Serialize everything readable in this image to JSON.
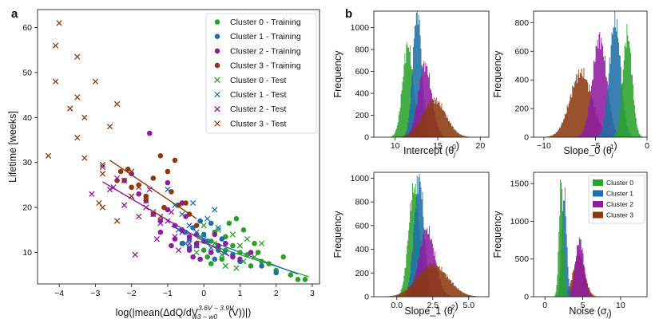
{
  "panel_labels": [
    "a",
    "b"
  ],
  "colors": {
    "Cluster 0": "#2ca02c",
    "Cluster 1": "#1f6fa6",
    "Cluster 2": "#8e1ba0",
    "Cluster 3": "#8b3a10"
  },
  "chart_data": [
    {
      "type": "scatter",
      "xlabel": "log(|mean(ΔdQ/dV",
      "xlabel_sup": "3.6V − 3.9V",
      "xlabel_sub": "w3 − w0",
      "xlabel_tail": "(V))|)",
      "ylabel": "Lifetime [weeks]",
      "xlim": [
        -4.6,
        3.2
      ],
      "ylim": [
        3,
        64
      ],
      "xticks": [
        -4,
        -3,
        -2,
        -1,
        0,
        1,
        2,
        3
      ],
      "yticks": [
        10,
        20,
        30,
        40,
        50,
        60
      ],
      "legend_position": "top-right",
      "legend": [
        "Cluster 0 - Training",
        "Cluster 1 - Training",
        "Cluster 2 - Training",
        "Cluster 3 - Training",
        "Cluster 0 - Test",
        "Cluster 1 - Test",
        "Cluster 2 - Test",
        "Cluster 3 - Test"
      ],
      "series": [
        {
          "name": "Cluster 0 - Training",
          "cluster": "Cluster 0",
          "marker": "circle",
          "points": [
            [
              0.2,
              12.5
            ],
            [
              0.4,
              11.0
            ],
            [
              0.6,
              13.5
            ],
            [
              0.8,
              11.5
            ],
            [
              1.0,
              10.0
            ],
            [
              1.2,
              9.5
            ],
            [
              1.4,
              12.0
            ],
            [
              1.6,
              8.0
            ],
            [
              1.8,
              7.5
            ],
            [
              2.0,
              6.0
            ],
            [
              2.2,
              9.0
            ],
            [
              2.4,
              5.0
            ],
            [
              2.6,
              4.0
            ],
            [
              2.8,
              4.0
            ],
            [
              0.1,
              9.0
            ],
            [
              0.3,
              14.5
            ],
            [
              0.7,
              16.5
            ],
            [
              0.9,
              17.5
            ],
            [
              1.1,
              15.0
            ],
            [
              0.5,
              8.5
            ],
            [
              0.0,
              10.5
            ],
            [
              1.3,
              7.0
            ],
            [
              0.6,
              10.5
            ],
            [
              1.5,
              10.0
            ],
            [
              0.2,
              7.5
            ]
          ]
        },
        {
          "name": "Cluster 1 - Training",
          "cluster": "Cluster 1",
          "marker": "circle",
          "points": [
            [
              -0.6,
              12.0
            ],
            [
              -0.4,
              13.0
            ],
            [
              -0.2,
              11.5
            ],
            [
              0.0,
              14.0
            ],
            [
              0.2,
              16.5
            ],
            [
              0.4,
              10.5
            ],
            [
              0.6,
              12.0
            ],
            [
              0.8,
              9.5
            ],
            [
              -0.3,
              15.5
            ],
            [
              0.1,
              12.5
            ],
            [
              -0.5,
              14.5
            ],
            [
              0.3,
              8.5
            ],
            [
              -0.1,
              17.0
            ],
            [
              0.5,
              13.0
            ],
            [
              1.0,
              8.0
            ],
            [
              1.6,
              7.0
            ],
            [
              2.0,
              5.5
            ],
            [
              -0.4,
              11.0
            ]
          ]
        },
        {
          "name": "Cluster 2 - Training",
          "cluster": "Cluster 2",
          "marker": "circle",
          "points": [
            [
              -2.2,
              26.0
            ],
            [
              -2.0,
              27.5
            ],
            [
              -1.8,
              23.0
            ],
            [
              -1.6,
              21.5
            ],
            [
              -1.4,
              18.5
            ],
            [
              -1.2,
              17.0
            ],
            [
              -1.0,
              19.5
            ],
            [
              -0.8,
              16.0
            ],
            [
              -0.6,
              15.0
            ],
            [
              -0.4,
              13.5
            ],
            [
              -0.2,
              14.0
            ],
            [
              0.0,
              12.5
            ],
            [
              -1.5,
              36.5
            ],
            [
              -1.0,
              25.5
            ],
            [
              -0.6,
              21.0
            ],
            [
              -0.8,
              13.0
            ],
            [
              -0.4,
              10.5
            ],
            [
              -0.3,
              9.0
            ],
            [
              -0.1,
              8.5
            ],
            [
              0.2,
              10.0
            ],
            [
              0.4,
              11.5
            ],
            [
              0.6,
              12.0
            ],
            [
              0.8,
              9.0
            ],
            [
              1.0,
              8.5
            ],
            [
              1.3,
              10.0
            ],
            [
              -1.2,
              14.5
            ],
            [
              -0.9,
              11.5
            ],
            [
              -0.5,
              18.0
            ],
            [
              -0.2,
              12.0
            ],
            [
              0.3,
              14.0
            ]
          ]
        },
        {
          "name": "Cluster 3 - Training",
          "cluster": "Cluster 3",
          "marker": "circle",
          "points": [
            [
              -2.4,
              26.0
            ],
            [
              -2.3,
              28.0
            ],
            [
              -2.1,
              28.5
            ],
            [
              -1.8,
              25.0
            ],
            [
              -1.4,
              26.5
            ],
            [
              -1.2,
              31.5
            ],
            [
              -1.0,
              28.0
            ],
            [
              -0.9,
              23.5
            ],
            [
              -0.7,
              20.5
            ],
            [
              -0.4,
              18.5
            ],
            [
              -0.2,
              16.0
            ],
            [
              -0.8,
              30.5
            ],
            [
              -1.6,
              22.5
            ],
            [
              -2.0,
              24.5
            ],
            [
              -0.5,
              21.0
            ],
            [
              -1.1,
              20.0
            ]
          ]
        },
        {
          "name": "Cluster 0 - Test",
          "cluster": "Cluster 0",
          "marker": "x",
          "points": [
            [
              0.0,
              16.0
            ],
            [
              0.3,
              12.0
            ],
            [
              0.5,
              9.5
            ],
            [
              0.8,
              14.0
            ],
            [
              1.0,
              11.5
            ],
            [
              1.2,
              13.0
            ],
            [
              1.4,
              9.0
            ],
            [
              1.6,
              12.0
            ],
            [
              -0.2,
              10.0
            ],
            [
              0.6,
              7.0
            ],
            [
              0.9,
              6.5
            ],
            [
              -0.1,
              13.5
            ],
            [
              0.4,
              15.0
            ],
            [
              1.1,
              8.0
            ]
          ]
        },
        {
          "name": "Cluster 1 - Test",
          "cluster": "Cluster 1",
          "marker": "x",
          "points": [
            [
              -1.0,
              24.0
            ],
            [
              -0.8,
              20.5
            ],
            [
              -0.6,
              18.5
            ],
            [
              -0.4,
              16.0
            ],
            [
              -0.2,
              14.5
            ],
            [
              0.0,
              13.0
            ],
            [
              0.2,
              11.0
            ],
            [
              0.3,
              19.5
            ],
            [
              -0.3,
              21.0
            ],
            [
              0.4,
              15.5
            ],
            [
              0.6,
              10.0
            ],
            [
              -0.5,
              12.0
            ],
            [
              -0.7,
              15.0
            ],
            [
              0.1,
              17.5
            ]
          ]
        },
        {
          "name": "Cluster 2 - Test",
          "cluster": "Cluster 2",
          "marker": "x",
          "points": [
            [
              -2.8,
              29.0
            ],
            [
              -2.6,
              24.0
            ],
            [
              -2.4,
              26.5
            ],
            [
              -2.2,
              20.5
            ],
            [
              -2.0,
              22.5
            ],
            [
              -1.8,
              18.0
            ],
            [
              -1.6,
              20.0
            ],
            [
              -1.4,
              18.5
            ],
            [
              -1.2,
              16.5
            ],
            [
              -1.0,
              17.0
            ],
            [
              -0.8,
              13.5
            ],
            [
              -0.6,
              14.5
            ],
            [
              -0.4,
              12.0
            ],
            [
              -0.2,
              11.5
            ],
            [
              -1.9,
              9.5
            ],
            [
              -1.3,
              13.0
            ],
            [
              -0.7,
              10.5
            ],
            [
              -3.1,
              23.0
            ],
            [
              -2.5,
              24.5
            ],
            [
              -1.5,
              24.0
            ],
            [
              -0.9,
              19.0
            ]
          ]
        },
        {
          "name": "Cluster 3 - Test",
          "cluster": "Cluster 3",
          "marker": "x",
          "points": [
            [
              -4.3,
              31.5
            ],
            [
              -4.1,
              48.0
            ],
            [
              -4.1,
              56.0
            ],
            [
              -4.0,
              61.0
            ],
            [
              -3.7,
              42.0
            ],
            [
              -3.5,
              53.5
            ],
            [
              -3.5,
              44.5
            ],
            [
              -3.5,
              35.5
            ],
            [
              -3.3,
              31.0
            ],
            [
              -3.3,
              40.0
            ],
            [
              -3.0,
              48.0
            ],
            [
              -2.8,
              29.5
            ],
            [
              -2.8,
              27.5
            ],
            [
              -2.9,
              21.0
            ],
            [
              -2.8,
              20.0
            ],
            [
              -2.6,
              38.0
            ],
            [
              -2.4,
              43.0
            ],
            [
              -2.2,
              26.0
            ],
            [
              -2.0,
              22.5
            ],
            [
              -1.8,
              24.5
            ],
            [
              -1.6,
              21.5
            ],
            [
              -1.4,
              19.0
            ],
            [
              -1.2,
              18.0
            ],
            [
              -2.4,
              17.0
            ],
            [
              -2.0,
              28.0
            ]
          ]
        }
      ],
      "fit_lines": [
        {
          "cluster": "Cluster 0",
          "x": [
            -0.2,
            2.9
          ],
          "y": [
            12.6,
            4.6
          ]
        },
        {
          "cluster": "Cluster 1",
          "x": [
            -0.9,
            2.6
          ],
          "y": [
            15.8,
            5.2
          ]
        },
        {
          "cluster": "Cluster 2",
          "x": [
            -2.8,
            0.7
          ],
          "y": [
            25.7,
            9.2
          ]
        },
        {
          "cluster": "Cluster 3",
          "x": [
            -2.6,
            -0.2
          ],
          "y": [
            30.5,
            17.5
          ]
        }
      ]
    },
    {
      "type": "histogram",
      "xlabel": "Intercept (θ",
      "xlabel_sub": "j",
      "xlabel_sup": "0",
      "ylabel": "Frequency",
      "xlim": [
        7.5,
        21
      ],
      "ylim": [
        0,
        1150
      ],
      "xticks": [
        10,
        15,
        20
      ],
      "yticks": [
        0,
        200,
        400,
        600,
        800,
        1000
      ],
      "series": [
        {
          "cluster": "Cluster 0",
          "mean": 11.5,
          "sd": 0.62,
          "peak": 840
        },
        {
          "cluster": "Cluster 1",
          "mean": 12.6,
          "sd": 0.52,
          "peak": 1160
        },
        {
          "cluster": "Cluster 2",
          "mean": 13.5,
          "sd": 0.78,
          "peak": 660
        },
        {
          "cluster": "Cluster 3",
          "mean": 14.6,
          "sd": 1.35,
          "peak": 340
        }
      ]
    },
    {
      "type": "histogram",
      "xlabel": "Slope_0 (θ",
      "xlabel_sub": "j",
      "xlabel_sup": "1",
      "ylabel": "Frequency",
      "xlim": [
        -11,
        0
      ],
      "ylim": [
        0,
        880
      ],
      "xticks": [
        -10,
        -5,
        0
      ],
      "yticks": [
        0,
        200,
        400,
        600,
        800
      ],
      "series": [
        {
          "cluster": "Cluster 0",
          "mean": -1.9,
          "sd": 0.45,
          "peak": 720
        },
        {
          "cluster": "Cluster 1",
          "mean": -3.1,
          "sd": 0.55,
          "peak": 810
        },
        {
          "cluster": "Cluster 2",
          "mean": -4.6,
          "sd": 0.68,
          "peak": 690
        },
        {
          "cluster": "Cluster 3",
          "mean": -6.4,
          "sd": 1.05,
          "peak": 450
        }
      ]
    },
    {
      "type": "histogram",
      "xlabel": "Slope_1 (θ",
      "xlabel_sub": "j",
      "xlabel_sup": "2",
      "ylabel": "Frequency",
      "xlim": [
        -1.6,
        6.4
      ],
      "ylim": [
        0,
        1050
      ],
      "xticks": [
        0,
        2.5,
        5
      ],
      "xtick_labels": [
        "0.0",
        "2.5",
        "5.0"
      ],
      "yticks": [
        0,
        200,
        400,
        600,
        800,
        1000
      ],
      "series": [
        {
          "cluster": "Cluster 0",
          "mean": 1.2,
          "sd": 0.38,
          "peak": 920
        },
        {
          "cluster": "Cluster 1",
          "mean": 1.55,
          "sd": 0.35,
          "peak": 1000
        },
        {
          "cluster": "Cluster 2",
          "mean": 2.1,
          "sd": 0.55,
          "peak": 560
        },
        {
          "cluster": "Cluster 3",
          "mean": 2.5,
          "sd": 1.05,
          "peak": 270
        }
      ]
    },
    {
      "type": "histogram",
      "xlabel": "Noise (σ",
      "xlabel_sub": "j",
      "xlabel_sup": "",
      "ylabel": "Frequency",
      "xlim": [
        -1.5,
        13.5
      ],
      "ylim": [
        0,
        1650
      ],
      "xticks": [
        0,
        5,
        10
      ],
      "yticks": [
        0,
        500,
        1000,
        1500
      ],
      "legend_position": "top-right",
      "legend": [
        "Cluster 0",
        "Cluster 1",
        "Cluster 2",
        "Cluster 3"
      ],
      "series": [
        {
          "cluster": "Cluster 0",
          "mean": 2.15,
          "sd": 0.28,
          "peak": 1530
        },
        {
          "cluster": "Cluster 1",
          "mean": 2.55,
          "sd": 0.32,
          "peak": 1360
        },
        {
          "cluster": "Cluster 2",
          "mean": 4.6,
          "sd": 0.55,
          "peak": 760
        },
        {
          "cluster": "Cluster 3",
          "mean": 4.5,
          "sd": 0.75,
          "peak": 560
        }
      ]
    }
  ]
}
